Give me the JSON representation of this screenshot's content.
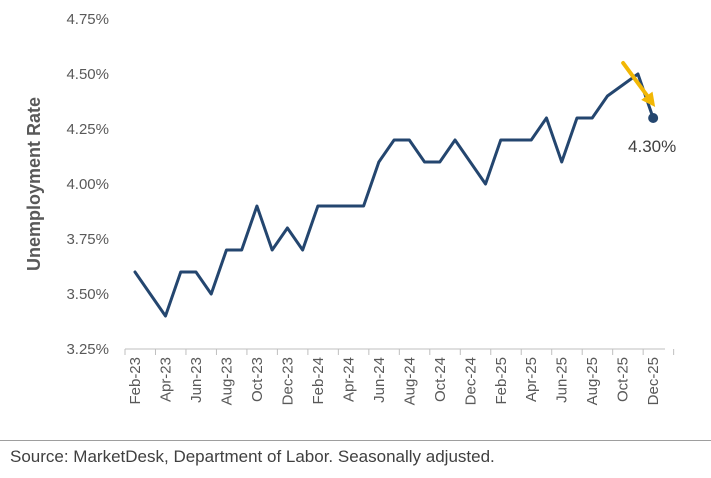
{
  "chart_data": {
    "type": "line",
    "ylabel": "Unemployment Rate",
    "xlabel": "",
    "ylim": [
      3.25,
      4.75
    ],
    "yticks": [
      "3.25%",
      "3.50%",
      "3.75%",
      "4.00%",
      "4.25%",
      "4.50%",
      "4.75%"
    ],
    "ytick_values": [
      3.25,
      3.5,
      3.75,
      4.0,
      4.25,
      4.5,
      4.75
    ],
    "x": [
      "Feb-23",
      "Mar-23",
      "Apr-23",
      "May-23",
      "Jun-23",
      "Jul-23",
      "Aug-23",
      "Sep-23",
      "Oct-23",
      "Nov-23",
      "Dec-23",
      "Jan-24",
      "Feb-24",
      "Mar-24",
      "Apr-24",
      "May-24",
      "Jun-24",
      "Jul-24",
      "Aug-24",
      "Sep-24",
      "Oct-24",
      "Nov-24",
      "Dec-24",
      "Jan-25",
      "Feb-25",
      "Mar-25",
      "Apr-25",
      "May-25",
      "Jun-25",
      "Jul-25",
      "Aug-25",
      "Sep-25",
      "Oct-25",
      "Nov-25",
      "Dec-25"
    ],
    "xtick_labels": [
      "Feb-23",
      "Apr-23",
      "Jun-23",
      "Aug-23",
      "Oct-23",
      "Dec-23",
      "Feb-24",
      "Apr-24",
      "Jun-24",
      "Aug-24",
      "Oct-24",
      "Dec-24",
      "Feb-25",
      "Apr-25",
      "Jun-25",
      "Aug-25",
      "Oct-25",
      "Dec-25"
    ],
    "series": [
      {
        "values": [
          3.6,
          3.5,
          3.4,
          3.6,
          3.6,
          3.5,
          3.7,
          3.7,
          3.9,
          3.7,
          3.8,
          3.7,
          3.9,
          3.9,
          3.9,
          3.9,
          4.1,
          4.2,
          4.2,
          4.1,
          4.1,
          4.2,
          4.1,
          4.0,
          4.2,
          4.2,
          4.2,
          4.3,
          4.1,
          4.3,
          4.3,
          4.4,
          4.45,
          4.5,
          4.3
        ]
      }
    ],
    "annotation": "4.30%",
    "grid": false,
    "colors": {
      "line": "#24466f",
      "arrow": "#f2b705",
      "axis": "#bfbfbf",
      "text": "#595959"
    }
  },
  "source": "Source: MarketDesk, Department of Labor. Seasonally adjusted."
}
